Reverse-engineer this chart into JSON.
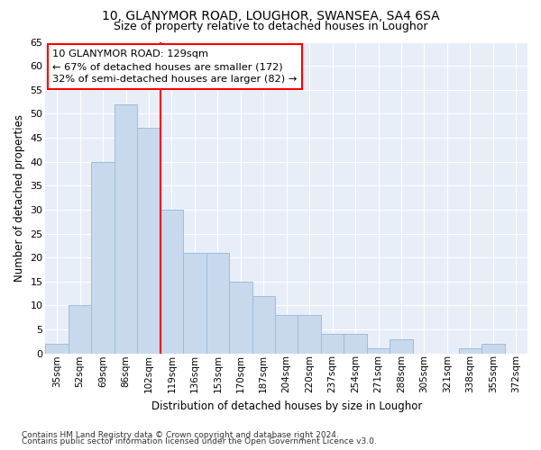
{
  "title1": "10, GLANYMOR ROAD, LOUGHOR, SWANSEA, SA4 6SA",
  "title2": "Size of property relative to detached houses in Loughor",
  "xlabel": "Distribution of detached houses by size in Loughor",
  "ylabel": "Number of detached properties",
  "categories": [
    "35sqm",
    "52sqm",
    "69sqm",
    "86sqm",
    "102sqm",
    "119sqm",
    "136sqm",
    "153sqm",
    "170sqm",
    "187sqm",
    "204sqm",
    "220sqm",
    "237sqm",
    "254sqm",
    "271sqm",
    "288sqm",
    "305sqm",
    "321sqm",
    "338sqm",
    "355sqm",
    "372sqm"
  ],
  "values": [
    2,
    10,
    40,
    52,
    47,
    30,
    21,
    21,
    15,
    12,
    8,
    8,
    4,
    4,
    1,
    3,
    0,
    0,
    1,
    2,
    0
  ],
  "bar_color": "#c8d9ee",
  "bar_edge_color": "#a0bcd8",
  "vline_x_index": 5,
  "vline_color": "red",
  "annotation_title": "10 GLANYMOR ROAD: 129sqm",
  "annotation_line1": "← 67% of detached houses are smaller (172)",
  "annotation_line2": "32% of semi-detached houses are larger (82) →",
  "annotation_box_facecolor": "white",
  "annotation_box_edgecolor": "red",
  "ylim": [
    0,
    65
  ],
  "yticks": [
    0,
    5,
    10,
    15,
    20,
    25,
    30,
    35,
    40,
    45,
    50,
    55,
    60,
    65
  ],
  "fig_bg_color": "#ffffff",
  "ax_bg_color": "#e8eef8",
  "grid_color": "#ffffff",
  "footnote1": "Contains HM Land Registry data © Crown copyright and database right 2024.",
  "footnote2": "Contains public sector information licensed under the Open Government Licence v3.0."
}
